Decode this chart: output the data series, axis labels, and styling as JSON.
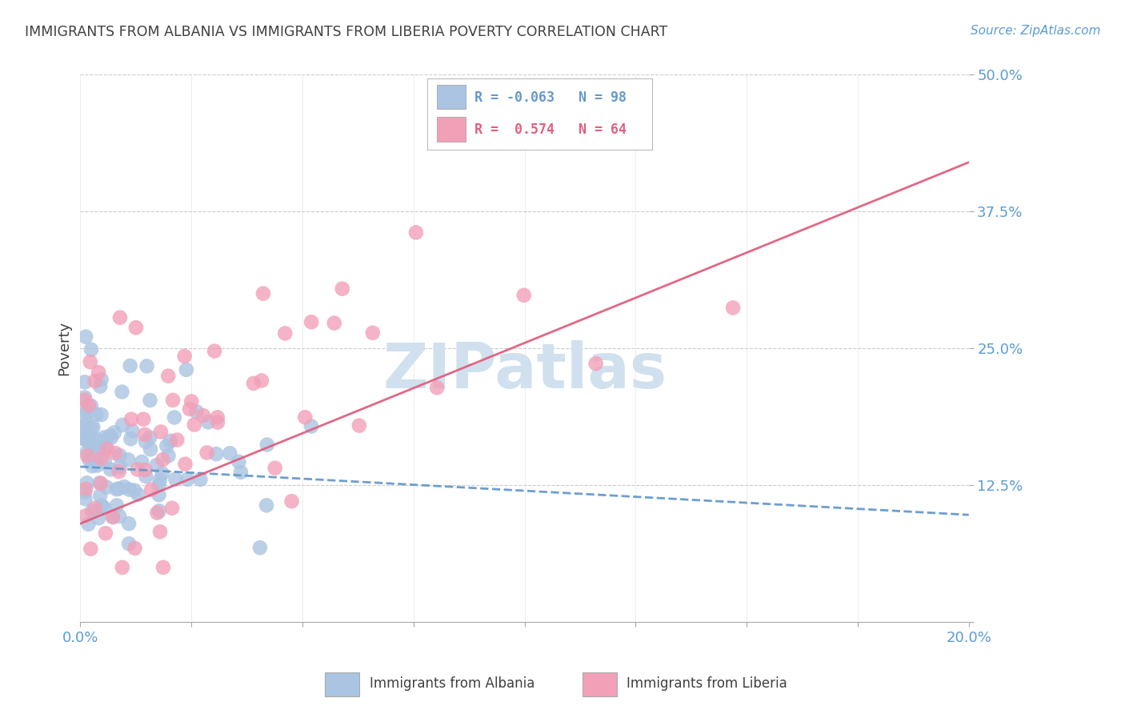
{
  "title": "IMMIGRANTS FROM ALBANIA VS IMMIGRANTS FROM LIBERIA POVERTY CORRELATION CHART",
  "source": "Source: ZipAtlas.com",
  "ylabel": "Poverty",
  "xlim": [
    0.0,
    0.2
  ],
  "ylim": [
    0.0,
    0.5
  ],
  "albania_R": -0.063,
  "albania_N": 98,
  "liberia_R": 0.574,
  "liberia_N": 64,
  "albania_color": "#aac4e2",
  "liberia_color": "#f2a0b8",
  "albania_line_color": "#6699cc",
  "liberia_line_color": "#e06080",
  "watermark": "ZIPatlas",
  "watermark_color": "#d0e0ee",
  "background_color": "#ffffff",
  "title_color": "#404040",
  "tick_label_color": "#5b9bd5",
  "grid_color": "#cccccc",
  "alb_line_x0": 0.0,
  "alb_line_x1": 0.2,
  "alb_line_y0": 0.142,
  "alb_line_y1": 0.098,
  "lib_line_x0": 0.0,
  "lib_line_x1": 0.2,
  "lib_line_y0": 0.09,
  "lib_line_y1": 0.42
}
